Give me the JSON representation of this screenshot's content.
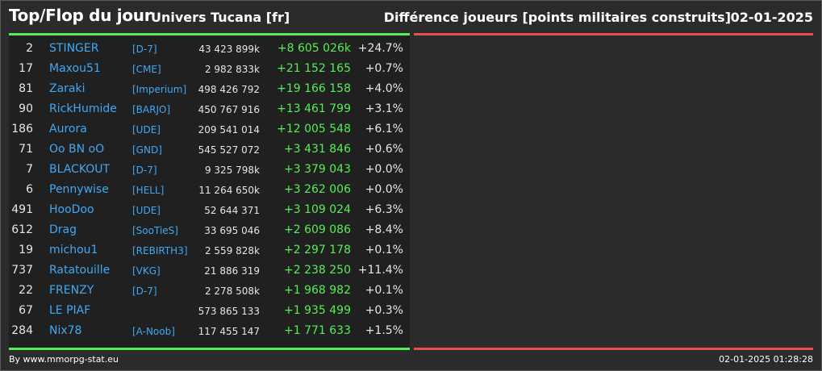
{
  "header": {
    "title": "Top/Flop du jour",
    "universe": "Univers Tucana [fr]",
    "subtitle": "Différence joueurs [points militaires construits]",
    "date": "02-01-2025"
  },
  "colors": {
    "positive": "#55ee55",
    "negative": "#e85050",
    "link": "#3fa9f5"
  },
  "top_list": [
    {
      "rank": "2",
      "name": "STINGER",
      "alliance": "[D-7]",
      "points": "43 423 899k",
      "diff": "+8 605 026k",
      "pct": "+24.7%"
    },
    {
      "rank": "17",
      "name": "Maxou51",
      "alliance": "[CME]",
      "points": "2 982 833k",
      "diff": "+21 152 165",
      "pct": "+0.7%"
    },
    {
      "rank": "81",
      "name": "Zaraki",
      "alliance": "[Imperium]",
      "points": "498 426 792",
      "diff": "+19 166 158",
      "pct": "+4.0%"
    },
    {
      "rank": "90",
      "name": "RickHumide",
      "alliance": "[BARJO]",
      "points": "450 767 916",
      "diff": "+13 461 799",
      "pct": "+3.1%"
    },
    {
      "rank": "186",
      "name": "Aurora",
      "alliance": "[UDE]",
      "points": "209 541 014",
      "diff": "+12 005 548",
      "pct": "+6.1%"
    },
    {
      "rank": "71",
      "name": "Oo BN oO",
      "alliance": "[GND]",
      "points": "545 527 072",
      "diff": "+3 431 846",
      "pct": "+0.6%"
    },
    {
      "rank": "7",
      "name": "BLACKOUT",
      "alliance": "[D-7]",
      "points": "9 325 798k",
      "diff": "+3 379 043",
      "pct": "+0.0%"
    },
    {
      "rank": "6",
      "name": "Pennywise",
      "alliance": "[HELL]",
      "points": "11 264 650k",
      "diff": "+3 262 006",
      "pct": "+0.0%"
    },
    {
      "rank": "491",
      "name": "HooDoo",
      "alliance": "[UDE]",
      "points": "52 644 371",
      "diff": "+3 109 024",
      "pct": "+6.3%"
    },
    {
      "rank": "612",
      "name": "Drag",
      "alliance": "[SooTieS]",
      "points": "33 695 046",
      "diff": "+2 609 086",
      "pct": "+8.4%"
    },
    {
      "rank": "19",
      "name": "michou1",
      "alliance": "[REBIRTH3]",
      "points": "2 559 828k",
      "diff": "+2 297 178",
      "pct": "+0.1%"
    },
    {
      "rank": "737",
      "name": "Ratatouille",
      "alliance": "[VKG]",
      "points": "21 886 319",
      "diff": "+2 238 250",
      "pct": "+11.4%"
    },
    {
      "rank": "22",
      "name": "FRENZY",
      "alliance": "[D-7]",
      "points": "2 278 508k",
      "diff": "+1 968 982",
      "pct": "+0.1%"
    },
    {
      "rank": "67",
      "name": "LE PIAF",
      "alliance": "",
      "points": "573 865 133",
      "diff": "+1 935 499",
      "pct": "+0.3%"
    },
    {
      "rank": "284",
      "name": "Nix78",
      "alliance": "[A-Noob]",
      "points": "117 455 147",
      "diff": "+1 771 633",
      "pct": "+1.5%"
    }
  ],
  "footer": {
    "credit": "By www.mmorpg-stat.eu",
    "timestamp": "02-01-2025 01:28:28"
  }
}
